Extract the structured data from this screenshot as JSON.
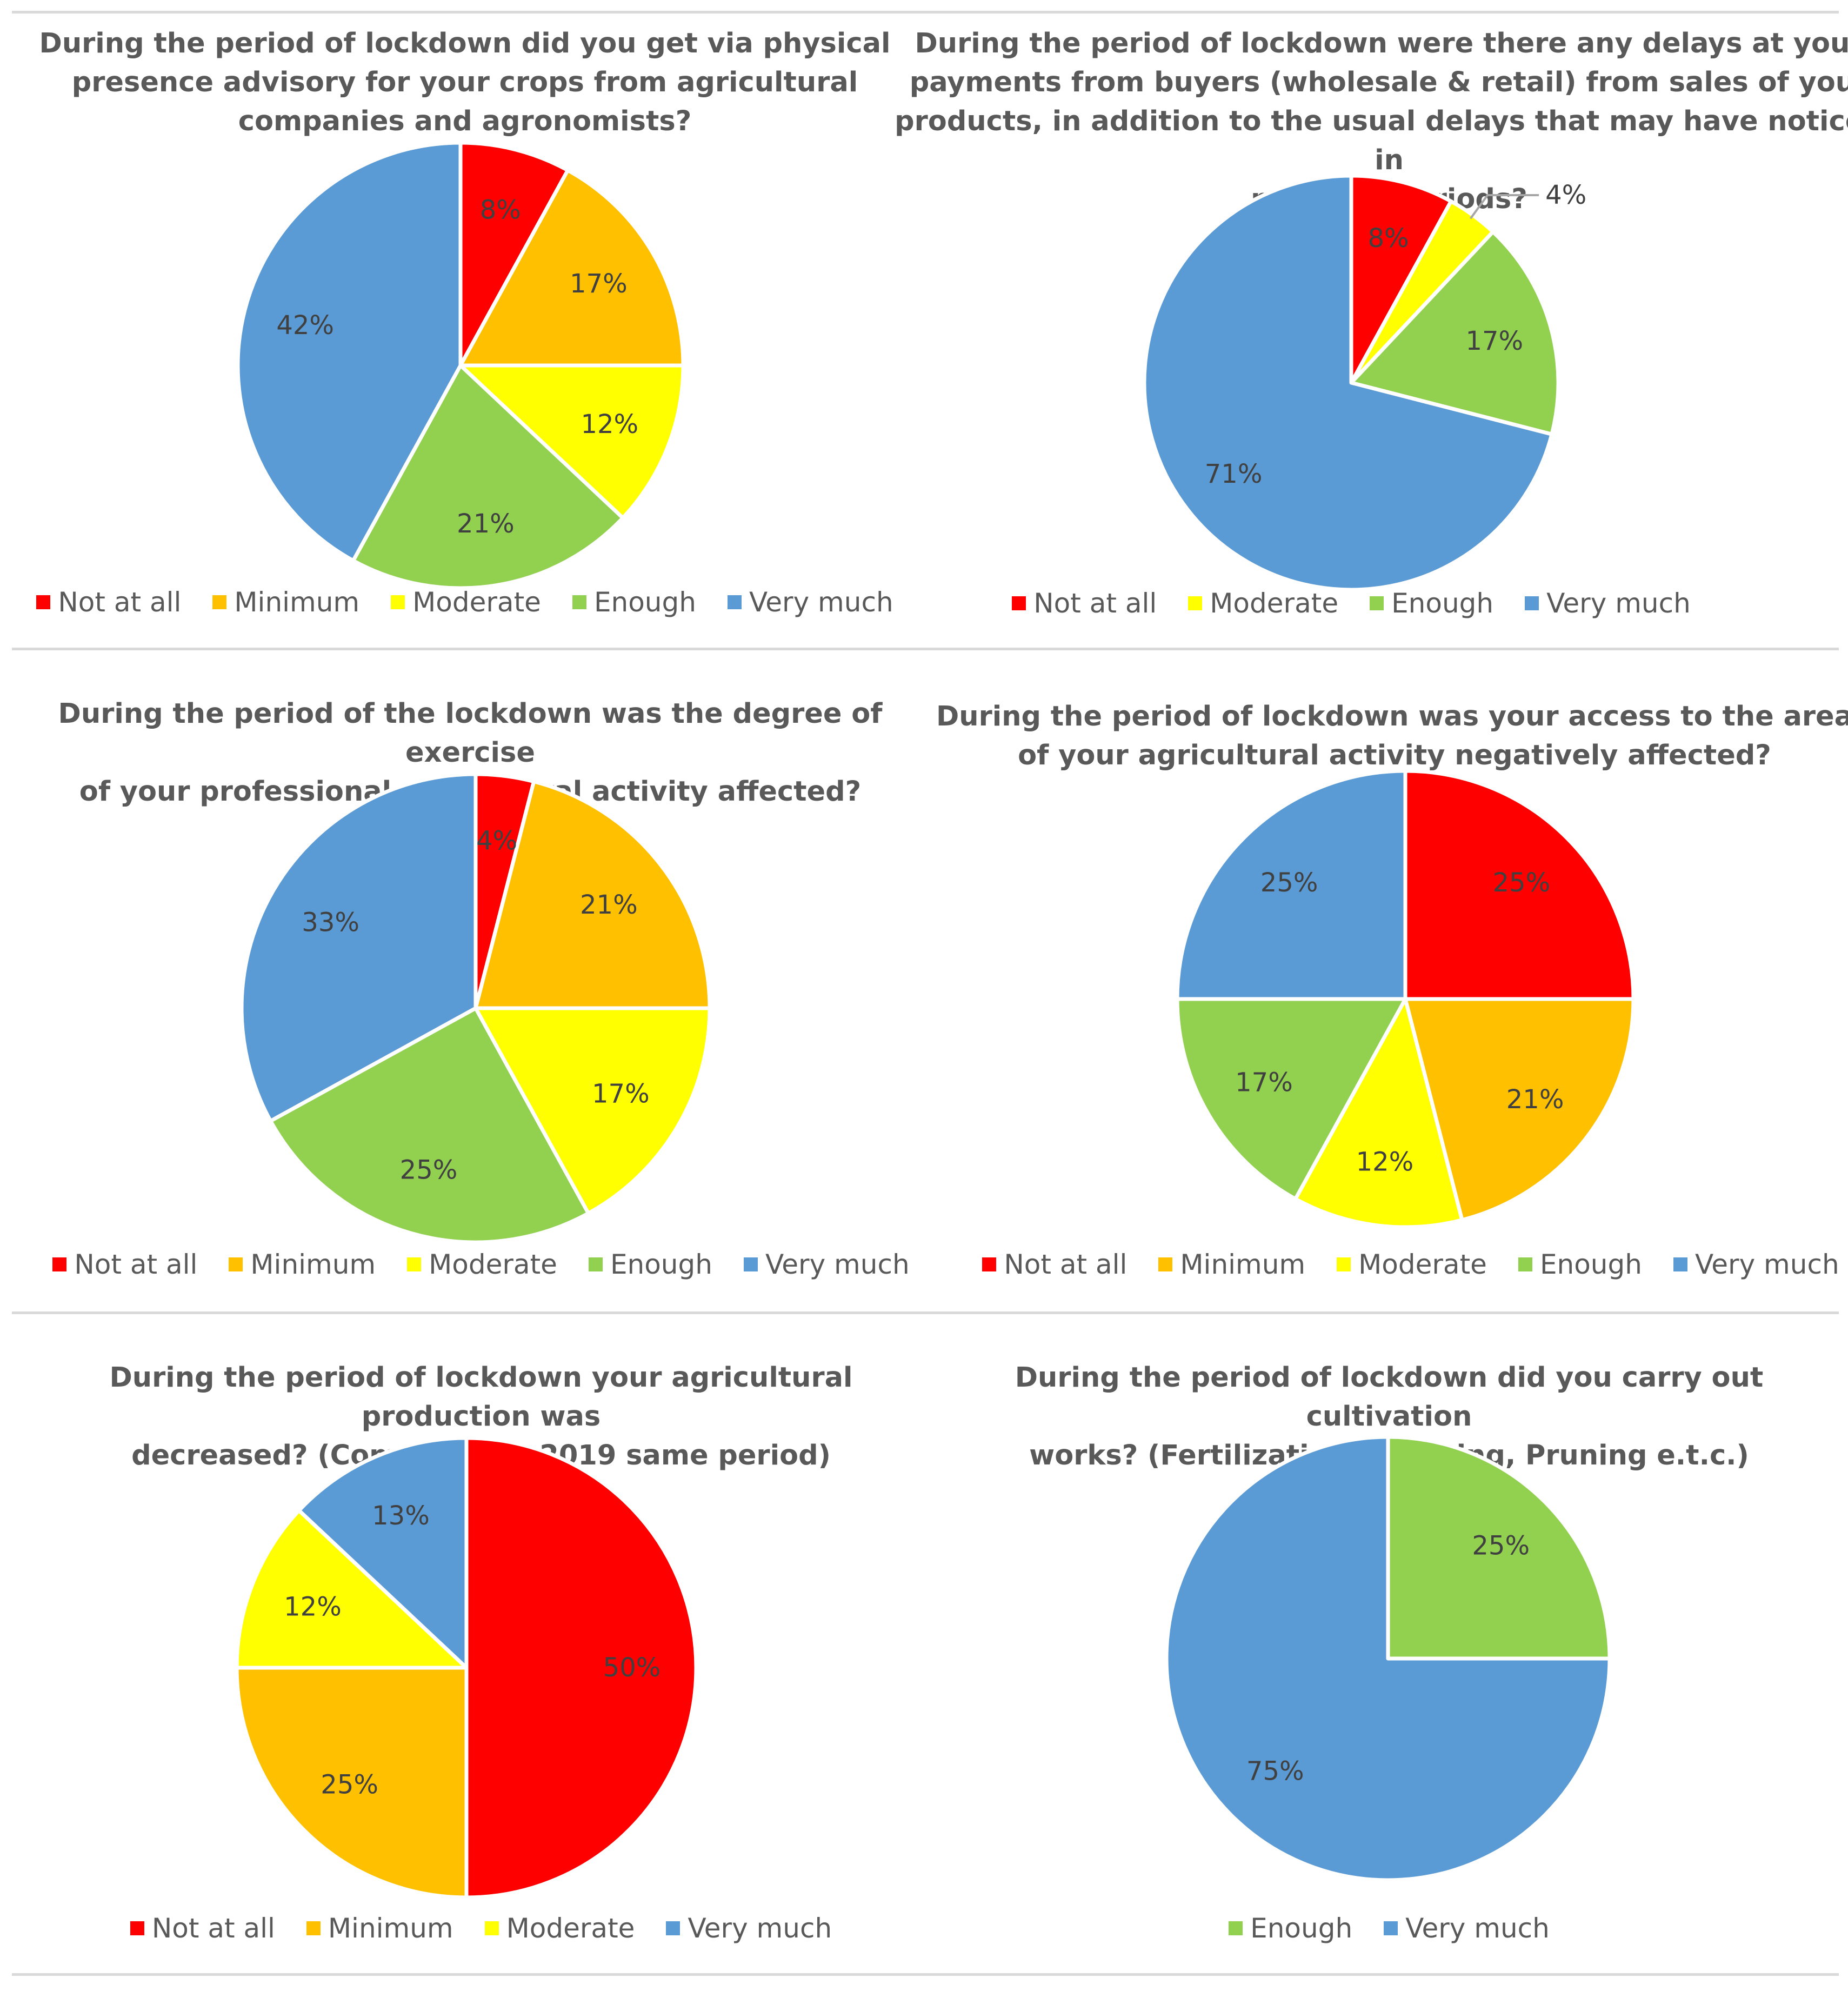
{
  "colors": {
    "Not at all": "#ff0000",
    "Minimum": "#ffc000",
    "Moderate": "#ffff00",
    "Enough": "#92d050",
    "Very much": "#5b9bd5"
  },
  "chart_data": [
    {
      "type": "pie",
      "title": "During the period of lockdown did you get via physical presence advisory for your crops from agricultural companies and agronomists?",
      "title_lines": [
        "During the period of lockdown did you get via physical",
        "presence advisory for your crops from agricultural",
        "companies and agronomists?"
      ],
      "categories": [
        "Not at all",
        "Minimum",
        "Moderate",
        "Enough",
        "Very much"
      ],
      "values": [
        8,
        17,
        12,
        21,
        42
      ],
      "labels": [
        "8%",
        "17%",
        "12%",
        "21%",
        "42%"
      ],
      "legend": [
        "Not at all",
        "Minimum",
        "Moderate",
        "Enough",
        "Very much"
      ]
    },
    {
      "type": "pie",
      "title": "During the period of lockdown were there any delays at your payments from buyers (wholesale & retail) from sales of your products, in addition to the usual delays that may have noticed in previous periods?",
      "title_lines": [
        "During the period of lockdown were there any delays at your",
        "payments from buyers (wholesale & retail) from sales of your",
        "products, in addition to the usual delays that may have noticed in",
        "previous periods?"
      ],
      "categories": [
        "Not at all",
        "Moderate",
        "Enough",
        "Very much"
      ],
      "values": [
        8,
        4,
        17,
        71
      ],
      "labels": [
        "8%",
        "4%",
        "17%",
        "71%"
      ],
      "legend": [
        "Not at all",
        "Moderate",
        "Enough",
        "Very much"
      ]
    },
    {
      "type": "pie",
      "title": "During the period of the lockdown was the degree of exercise of your professional agricultural activity affected?",
      "title_lines": [
        "During the period of the lockdown was the degree of exercise",
        "of your professional agricultural activity affected?"
      ],
      "categories": [
        "Not at all",
        "Minimum",
        "Moderate",
        "Enough",
        "Very much"
      ],
      "values": [
        4,
        21,
        17,
        25,
        33
      ],
      "labels": [
        "4%",
        "21%",
        "17%",
        "25%",
        "33%"
      ],
      "legend": [
        "Not at all",
        "Minimum",
        "Moderate",
        "Enough",
        "Very much"
      ]
    },
    {
      "type": "pie",
      "title": "During the period of lockdown was your access to the area of your agricultural activity negatively affected?",
      "title_lines": [
        "During the period of lockdown was your access to the area",
        "of your agricultural activity negatively affected?"
      ],
      "categories": [
        "Not at all",
        "Minimum",
        "Moderate",
        "Enough",
        "Very much"
      ],
      "values": [
        25,
        21,
        12,
        17,
        25
      ],
      "labels": [
        "25%",
        "21%",
        "12%",
        "17%",
        "25%"
      ],
      "legend": [
        "Not at all",
        "Minimum",
        "Moderate",
        "Enough",
        "Very much"
      ]
    },
    {
      "type": "pie",
      "title": "During the period of lockdown your agricultural production was decreased? (Compared to 2019 same period)",
      "title_lines": [
        "During the period of lockdown your agricultural production was",
        "decreased? (Compared to 2019 same period)"
      ],
      "categories": [
        "Not at all",
        "Minimum",
        "Moderate",
        "Very much"
      ],
      "values": [
        50,
        25,
        12,
        13
      ],
      "labels": [
        "50%",
        "25%",
        "12%",
        "13%"
      ],
      "legend": [
        "Not at all",
        "Minimum",
        "Moderate",
        "Very much"
      ]
    },
    {
      "type": "pie",
      "title": "During the period of lockdown did you carry out cultivation works? (Fertilization, Spraying, Pruning e.t.c.)",
      "title_lines": [
        "During the period of lockdown did you carry out cultivation",
        "works? (Fertilization, Spraying, Pruning e.t.c.)"
      ],
      "categories": [
        "Enough",
        "Very much"
      ],
      "values": [
        25,
        75
      ],
      "labels": [
        "25%",
        "75%"
      ],
      "legend": [
        "Enough",
        "Very much"
      ]
    }
  ]
}
